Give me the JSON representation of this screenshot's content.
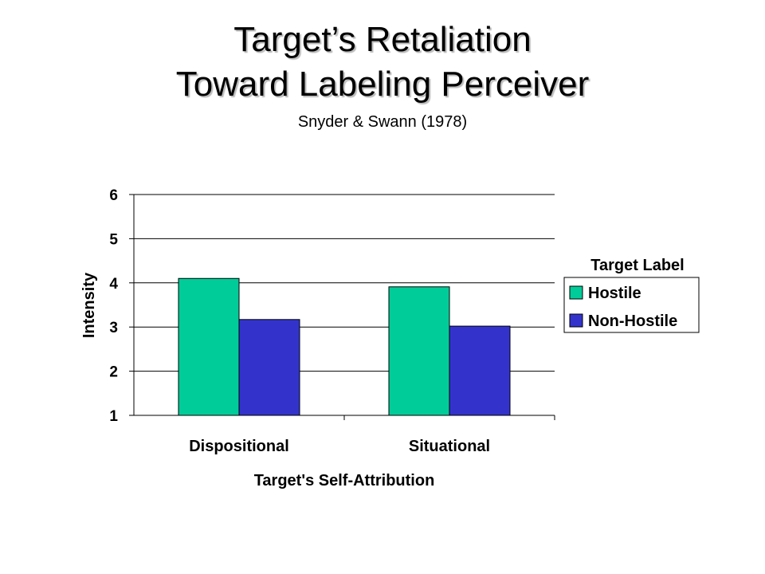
{
  "title_line1": "Target’s Retaliation",
  "title_line2": "Toward Labeling Perceiver",
  "subtitle": "Snyder & Swann (1978)",
  "chart_data": {
    "type": "bar",
    "categories": [
      "Dispositional",
      "Situational"
    ],
    "series": [
      {
        "name": "Hostile",
        "color": "#00CC99",
        "values": [
          4.1,
          3.91
        ]
      },
      {
        "name": "Non-Hostile",
        "color": "#3333CC",
        "values": [
          3.17,
          3.02
        ]
      }
    ],
    "xlabel": "Target's Self-Attribution",
    "ylabel": "Intensity",
    "ylim": [
      1,
      6
    ],
    "yticks": [
      1,
      2,
      3,
      4,
      5,
      6
    ],
    "grid": true,
    "legend_title": "Target Label",
    "legend_position": "right"
  }
}
